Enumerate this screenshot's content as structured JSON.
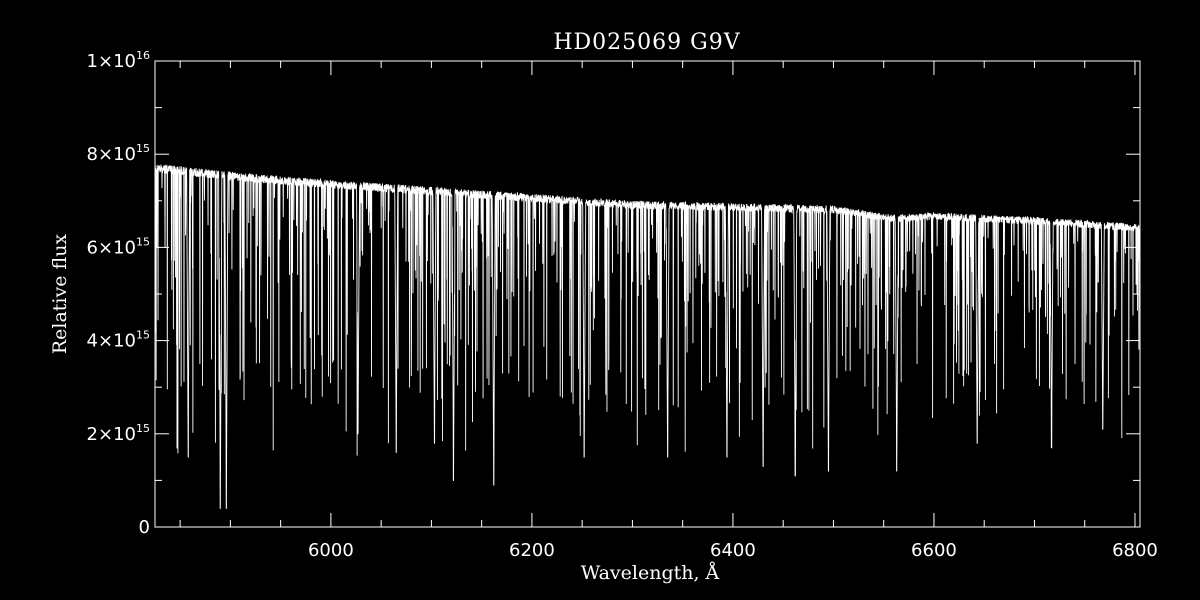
{
  "chart_data": {
    "type": "line",
    "title": "HD025069   G9V",
    "xlabel": "Wavelength, Å",
    "ylabel": "Relative flux",
    "xlim": [
      5825,
      6805
    ],
    "ylim": [
      0,
      1e+16
    ],
    "x_ticks": [
      {
        "value": 6000,
        "label": "6000"
      },
      {
        "value": 6200,
        "label": "6200"
      },
      {
        "value": 6400,
        "label": "6400"
      },
      {
        "value": 6600,
        "label": "6600"
      },
      {
        "value": 6800,
        "label": "6800"
      }
    ],
    "y_ticks": [
      {
        "value": 0,
        "mant": "0",
        "exp": ""
      },
      {
        "value": 2000000000000000.0,
        "mant": "2×10",
        "exp": "15"
      },
      {
        "value": 4000000000000000.0,
        "mant": "4×10",
        "exp": "15"
      },
      {
        "value": 6000000000000000.0,
        "mant": "6×10",
        "exp": "15"
      },
      {
        "value": 8000000000000000.0,
        "mant": "8×10",
        "exp": "15"
      },
      {
        "value": 1e+16,
        "mant": "1×10",
        "exp": "16"
      }
    ],
    "x_minor_step": 50,
    "y_minor_step": 1000000000000000.0,
    "grid": false,
    "series": [
      {
        "color": "#ffffff",
        "continuum": [
          [
            5825,
            7800000000000000.0
          ],
          [
            5870,
            7700000000000000.0
          ],
          [
            5910,
            7600000000000000.0
          ],
          [
            6000,
            7450000000000000.0
          ],
          [
            6100,
            7300000000000000.0
          ],
          [
            6200,
            7150000000000000.0
          ],
          [
            6300,
            7000000000000000.0
          ],
          [
            6400,
            6950000000000000.0
          ],
          [
            6500,
            6900000000000000.0
          ],
          [
            6560,
            6700000000000000.0
          ],
          [
            6600,
            6750000000000000.0
          ],
          [
            6700,
            6650000000000000.0
          ],
          [
            6805,
            6500000000000000.0
          ]
        ],
        "strong_lines": [
          {
            "x": 5890,
            "y": 400000000000000.0
          },
          {
            "x": 5896,
            "y": 400000000000000.0
          },
          {
            "x": 5858,
            "y": 1500000000000000.0
          },
          {
            "x": 6162,
            "y": 900000000000000.0
          },
          {
            "x": 6122,
            "y": 1000000000000000.0
          },
          {
            "x": 6103,
            "y": 1800000000000000.0
          },
          {
            "x": 6065,
            "y": 1600000000000000.0
          },
          {
            "x": 6027,
            "y": 2000000000000000.0
          },
          {
            "x": 6252,
            "y": 1500000000000000.0
          },
          {
            "x": 6335,
            "y": 1500000000000000.0
          },
          {
            "x": 6394,
            "y": 1500000000000000.0
          },
          {
            "x": 6430,
            "y": 1300000000000000.0
          },
          {
            "x": 6462,
            "y": 1100000000000000.0
          },
          {
            "x": 6495,
            "y": 1200000000000000.0
          },
          {
            "x": 6563,
            "y": 1200000000000000.0
          },
          {
            "x": 6643,
            "y": 1800000000000000.0
          },
          {
            "x": 6717,
            "y": 1700000000000000.0
          },
          {
            "x": 6768,
            "y": 2100000000000000.0
          }
        ]
      }
    ]
  }
}
